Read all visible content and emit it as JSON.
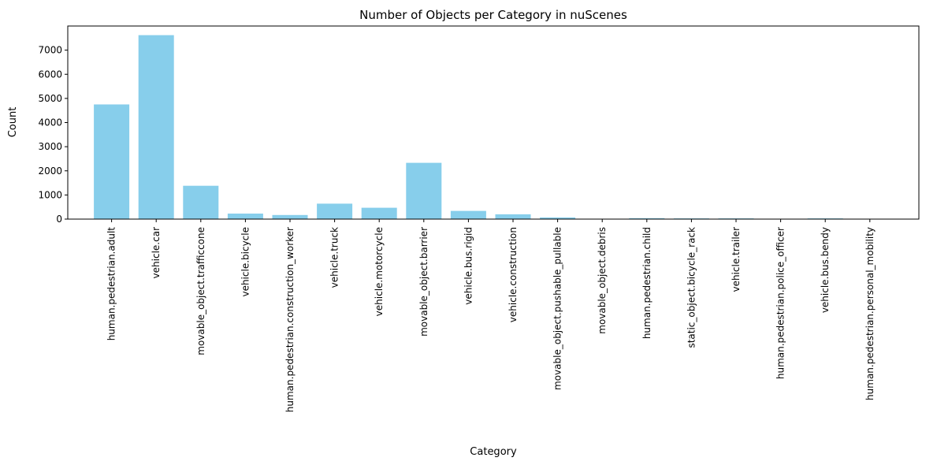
{
  "chart_data": {
    "type": "bar",
    "title": "Number of Objects per Category in nuScenes",
    "xlabel": "Category",
    "ylabel": "Count",
    "ylim": [
      0,
      8000
    ],
    "yticks": [
      0,
      1000,
      2000,
      3000,
      4000,
      5000,
      6000,
      7000
    ],
    "grid": false,
    "bar_color": "#87ceeb",
    "categories": [
      "human.pedestrian.adult",
      "vehicle.car",
      "movable_object.trafficcone",
      "vehicle.bicycle",
      "human.pedestrian.construction_worker",
      "vehicle.truck",
      "vehicle.motorcycle",
      "movable_object.barrier",
      "vehicle.bus.rigid",
      "vehicle.construction",
      "movable_object.pushable_pullable",
      "movable_object.debris",
      "human.pedestrian.child",
      "static_object.bicycle_rack",
      "vehicle.trailer",
      "human.pedestrian.police_officer",
      "vehicle.bus.bendy",
      "human.pedestrian.personal_mobility"
    ],
    "values": [
      4750,
      7620,
      1380,
      230,
      170,
      640,
      470,
      2330,
      340,
      200,
      70,
      10,
      40,
      30,
      30,
      10,
      30,
      10
    ]
  }
}
